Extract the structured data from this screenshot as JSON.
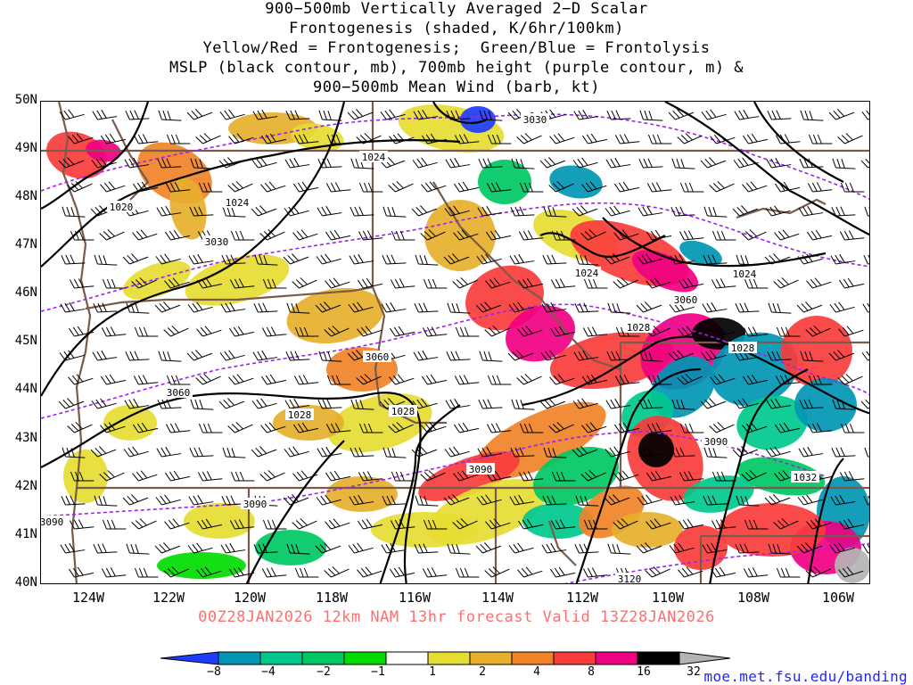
{
  "title": {
    "lines": [
      "900−500mb Vertically Averaged 2−D Scalar",
      "Frontogenesis (shaded, K/6hr/100km)",
      "Yellow/Red = Frontogenesis;  Green/Blue = Frontolysis",
      "MSLP (black contour, mb), 700mb height (purple contour, m) &",
      "900−500mb Mean Wind (barb, kt)"
    ]
  },
  "map": {
    "lat_labels": [
      "50N",
      "49N",
      "48N",
      "47N",
      "46N",
      "45N",
      "44N",
      "43N",
      "42N",
      "41N",
      "40N"
    ],
    "lon_labels": [
      "124W",
      "122W",
      "120W",
      "118W",
      "116W",
      "114W",
      "112W",
      "110W",
      "108W",
      "106W"
    ],
    "mslp_labels": [
      "1024",
      "1024",
      "1020",
      "1024",
      "1024",
      "1028",
      "1028",
      "1028",
      "1028",
      "1032"
    ],
    "height_labels": [
      "3030",
      "3030",
      "3060",
      "3060",
      "3060",
      "3090",
      "3090",
      "3090",
      "3120",
      "3090"
    ],
    "colors": {
      "mslp": "#000000",
      "height": "#a020f0",
      "borders": "#7a5a4a",
      "barb": "#000000"
    }
  },
  "forecast": {
    "valid_line": "00Z28JAN2026 12km NAM 13hr forecast Valid 13Z28JAN2026"
  },
  "colorbar": {
    "ticks": [
      "−8",
      "−4",
      "−2",
      "−1",
      "1",
      "2",
      "4",
      "8",
      "16",
      "32"
    ],
    "colors": [
      "#1e3cff",
      "#0096b4",
      "#00c88c",
      "#00c864",
      "#00dc00",
      "#ffffff",
      "#e6dc32",
      "#e6af2d",
      "#f08228",
      "#fa3c3c",
      "#f00082",
      "#000000",
      "#b4b4b4"
    ]
  },
  "credit": "moe.met.fsu.edu/banding"
}
